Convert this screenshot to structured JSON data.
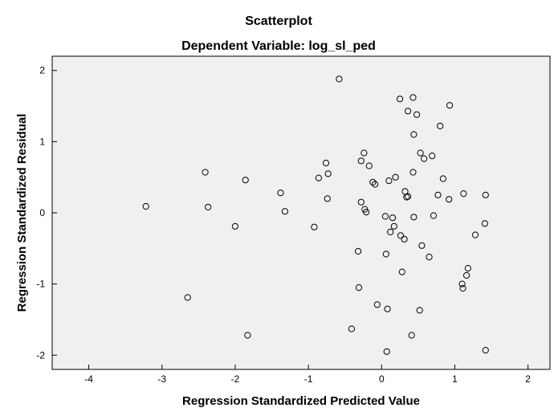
{
  "chart_data": {
    "type": "scatter",
    "title": "Scatterplot",
    "subtitle": "Dependent Variable: log_sl_ped",
    "xlabel": "Regression Standardized Predicted Value",
    "ylabel": "Regression Standardized Residual",
    "xlim": [
      -4.5,
      2.3
    ],
    "ylim": [
      -2.2,
      2.2
    ],
    "xticks": [
      -4,
      -3,
      -2,
      -1,
      0,
      1,
      2
    ],
    "yticks": [
      -2,
      -1,
      0,
      1,
      2
    ],
    "grid": false,
    "colors": {
      "plot_background": "#f0f0f0",
      "marker": "#000000"
    },
    "points": [
      {
        "x": -3.22,
        "y": 0.09
      },
      {
        "x": -2.65,
        "y": -1.19
      },
      {
        "x": -2.41,
        "y": 0.57
      },
      {
        "x": -2.37,
        "y": 0.08
      },
      {
        "x": -2.0,
        "y": -0.19
      },
      {
        "x": -1.86,
        "y": 0.46
      },
      {
        "x": -1.83,
        "y": -1.72
      },
      {
        "x": -1.38,
        "y": 0.28
      },
      {
        "x": -1.32,
        "y": 0.02
      },
      {
        "x": -0.92,
        "y": -0.2
      },
      {
        "x": -0.86,
        "y": 0.49
      },
      {
        "x": -0.76,
        "y": 0.7
      },
      {
        "x": -0.73,
        "y": 0.55
      },
      {
        "x": -0.74,
        "y": 0.2
      },
      {
        "x": -0.58,
        "y": 1.88
      },
      {
        "x": -0.41,
        "y": -1.63
      },
      {
        "x": -0.32,
        "y": -0.54
      },
      {
        "x": -0.31,
        "y": -1.05
      },
      {
        "x": -0.28,
        "y": 0.73
      },
      {
        "x": -0.28,
        "y": 0.15
      },
      {
        "x": -0.24,
        "y": 0.84
      },
      {
        "x": -0.23,
        "y": 0.05
      },
      {
        "x": -0.21,
        "y": 0.01
      },
      {
        "x": -0.17,
        "y": 0.66
      },
      {
        "x": -0.12,
        "y": 0.43
      },
      {
        "x": -0.09,
        "y": 0.4
      },
      {
        "x": -0.06,
        "y": -1.29
      },
      {
        "x": 0.05,
        "y": -0.05
      },
      {
        "x": 0.06,
        "y": -0.58
      },
      {
        "x": 0.07,
        "y": -1.95
      },
      {
        "x": 0.08,
        "y": -1.35
      },
      {
        "x": 0.1,
        "y": 0.45
      },
      {
        "x": 0.12,
        "y": -0.27
      },
      {
        "x": 0.15,
        "y": -0.07
      },
      {
        "x": 0.17,
        "y": -0.19
      },
      {
        "x": 0.19,
        "y": 0.5
      },
      {
        "x": 0.25,
        "y": 1.6
      },
      {
        "x": 0.26,
        "y": -0.32
      },
      {
        "x": 0.28,
        "y": -0.83
      },
      {
        "x": 0.31,
        "y": -0.37
      },
      {
        "x": 0.32,
        "y": 0.3
      },
      {
        "x": 0.34,
        "y": 0.22
      },
      {
        "x": 0.36,
        "y": 0.23
      },
      {
        "x": 0.36,
        "y": 1.43
      },
      {
        "x": 0.41,
        "y": -1.72
      },
      {
        "x": 0.43,
        "y": 1.62
      },
      {
        "x": 0.43,
        "y": 0.57
      },
      {
        "x": 0.44,
        "y": 1.1
      },
      {
        "x": 0.44,
        "y": -0.06
      },
      {
        "x": 0.48,
        "y": 1.38
      },
      {
        "x": 0.52,
        "y": -1.37
      },
      {
        "x": 0.53,
        "y": 0.84
      },
      {
        "x": 0.55,
        "y": -0.46
      },
      {
        "x": 0.58,
        "y": 0.76
      },
      {
        "x": 0.65,
        "y": -0.62
      },
      {
        "x": 0.69,
        "y": 0.8
      },
      {
        "x": 0.71,
        "y": -0.04
      },
      {
        "x": 0.77,
        "y": 0.25
      },
      {
        "x": 0.8,
        "y": 1.22
      },
      {
        "x": 0.84,
        "y": 0.48
      },
      {
        "x": 0.92,
        "y": 0.19
      },
      {
        "x": 0.93,
        "y": 1.51
      },
      {
        "x": 1.1,
        "y": -1.0
      },
      {
        "x": 1.11,
        "y": -1.06
      },
      {
        "x": 1.12,
        "y": 0.27
      },
      {
        "x": 1.16,
        "y": -0.88
      },
      {
        "x": 1.18,
        "y": -0.78
      },
      {
        "x": 1.28,
        "y": -0.31
      },
      {
        "x": 1.41,
        "y": -0.15
      },
      {
        "x": 1.42,
        "y": 0.25
      },
      {
        "x": 1.42,
        "y": -1.93
      }
    ]
  }
}
